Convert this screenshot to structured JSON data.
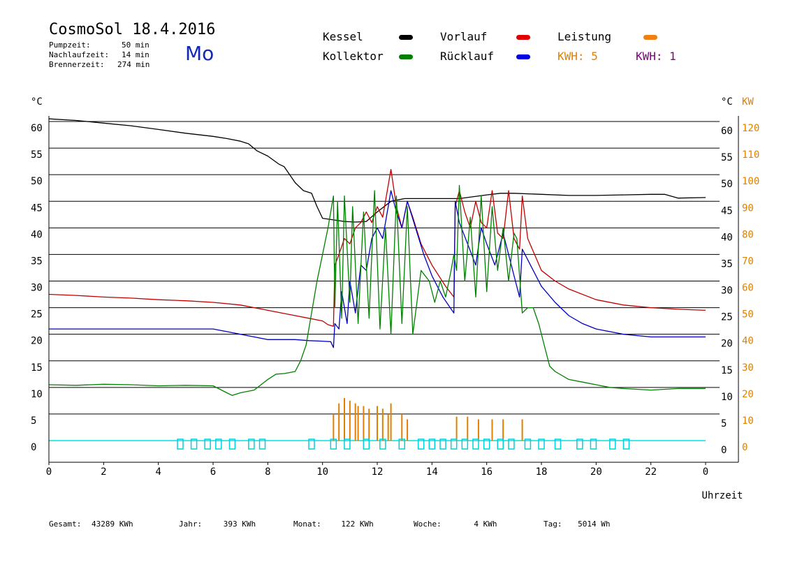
{
  "header": {
    "title": "CosmoSol 18.4.2016",
    "day": "Mo",
    "info": [
      {
        "label": "Pumpzeit:",
        "value": "50 min"
      },
      {
        "label": "Nachlaufzeit:",
        "value": "14 min"
      },
      {
        "label": "Brennerzeit:",
        "value": "274 min"
      }
    ]
  },
  "legend": {
    "kessel": {
      "label": "Kessel",
      "color": "#000000"
    },
    "kollektor": {
      "label": "Kollektor",
      "color": "#008000"
    },
    "vorlauf": {
      "label": "Vorlauf",
      "color": "#e00000"
    },
    "ruecklauf": {
      "label": "Rücklauf",
      "color": "#0000e0"
    },
    "leistung": {
      "label": "Leistung",
      "color": "#f08010"
    },
    "kwh1": {
      "label": "KWH: 5",
      "color": "#e08000"
    },
    "kwh2": {
      "label": "KWH: 1",
      "color": "#800080"
    }
  },
  "footer": [
    {
      "label": "Gesamt:",
      "value": "43289 KWh"
    },
    {
      "label": "Jahr:",
      "value": "393 KWh"
    },
    {
      "label": "Monat:",
      "value": "122 KWh"
    },
    {
      "label": "Woche:",
      "value": "4 KWh"
    },
    {
      "label": "Tag:",
      "value": "5014 Wh"
    }
  ],
  "chart_data": {
    "type": "line",
    "xlabel": "Uhrzeit",
    "ylabel_left": "°C",
    "ylabel_right_temp": "°C",
    "ylabel_right_power": "KW",
    "xlim": [
      0,
      24
    ],
    "ylim": [
      0,
      60
    ],
    "y2lim": [
      0,
      120
    ],
    "x_ticks": [
      "0",
      "2",
      "4",
      "6",
      "8",
      "10",
      "12",
      "14",
      "16",
      "18",
      "20",
      "22",
      "0"
    ],
    "y_ticks": [
      0,
      5,
      10,
      15,
      20,
      25,
      30,
      35,
      40,
      45,
      50,
      55,
      60
    ],
    "y2_ticks": [
      0,
      10,
      20,
      30,
      40,
      50,
      60,
      70,
      80,
      90,
      100,
      110,
      120
    ],
    "grid": true,
    "series": [
      {
        "name": "Kessel",
        "color": "#000000",
        "x": [
          0,
          1,
          2,
          3,
          4,
          5,
          6,
          6.5,
          7,
          7.3,
          7.6,
          8,
          8.4,
          8.6,
          8.8,
          9,
          9.3,
          9.6,
          9.8,
          10,
          10.4,
          10.8,
          11.2,
          11.6,
          12,
          12.5,
          13,
          13.5,
          14,
          15,
          16,
          16.5,
          17,
          18,
          19,
          20,
          21,
          22,
          22.5,
          23,
          24
        ],
        "y": [
          60.5,
          60.2,
          59.7,
          59.2,
          58.5,
          57.8,
          57.2,
          56.8,
          56.3,
          55.8,
          54.5,
          53.5,
          52,
          51.5,
          50,
          48.5,
          47,
          46.5,
          44,
          41.8,
          41.5,
          41.2,
          41.1,
          41.2,
          43,
          45,
          45.5,
          45.5,
          45.5,
          45.5,
          46.2,
          46.5,
          46.5,
          46.3,
          46.1,
          46.1,
          46.2,
          46.3,
          46.3,
          45.6,
          45.7
        ]
      },
      {
        "name": "Vorlauf",
        "color": "#c00000",
        "x": [
          0,
          1,
          2,
          3,
          4,
          5,
          6,
          7,
          8,
          9,
          9.5,
          10,
          10.2,
          10.4,
          10.45,
          10.6,
          10.8,
          11,
          11.2,
          11.4,
          11.6,
          11.8,
          12,
          12.2,
          12.4,
          12.5,
          12.7,
          12.9,
          13.1,
          13.3,
          13.6,
          14,
          14.5,
          14.8,
          14.85,
          15,
          15.2,
          15.4,
          15.6,
          15.8,
          16,
          16.2,
          16.4,
          16.6,
          16.8,
          17,
          17.2,
          17.3,
          17.5,
          18,
          18.5,
          19,
          20,
          21,
          22,
          23,
          24
        ],
        "y": [
          27.5,
          27.3,
          27,
          26.8,
          26.5,
          26.3,
          26,
          25.5,
          24.5,
          23.5,
          23,
          22.5,
          21.8,
          21.5,
          33,
          35,
          38,
          37,
          40,
          41,
          43,
          41,
          44,
          42,
          48,
          51,
          44,
          40,
          45,
          42,
          37,
          33,
          29,
          27,
          44,
          47,
          43,
          40,
          45,
          41,
          40,
          47,
          39,
          38,
          47,
          38,
          36,
          46,
          38,
          32,
          30,
          28.5,
          26.5,
          25.5,
          25,
          24.7,
          24.5
        ]
      },
      {
        "name": "Rücklauf",
        "color": "#0000c0",
        "x": [
          0,
          1,
          2,
          3,
          4,
          5,
          6,
          6.5,
          7,
          7.5,
          8,
          8.5,
          9,
          9.5,
          10,
          10.3,
          10.4,
          10.45,
          10.6,
          10.7,
          10.9,
          11,
          11.2,
          11.4,
          11.6,
          11.8,
          12,
          12.2,
          12.4,
          12.5,
          12.7,
          12.9,
          13.1,
          13.4,
          13.7,
          14,
          14.4,
          14.8,
          14.85,
          15,
          15.3,
          15.6,
          15.8,
          16,
          16.3,
          16.6,
          16.8,
          17,
          17.2,
          17.3,
          17.6,
          18,
          18.5,
          19,
          19.5,
          20,
          21,
          22,
          23,
          24
        ],
        "y": [
          21,
          21,
          21,
          21,
          21,
          21,
          21,
          20.5,
          20,
          19.5,
          19,
          19,
          19,
          18.8,
          18.7,
          18.6,
          17.5,
          22,
          21,
          28,
          22,
          30,
          24,
          33,
          32,
          38,
          40,
          38,
          44,
          47,
          43,
          40,
          45,
          40,
          35,
          31,
          27,
          24,
          45,
          41,
          37,
          33,
          40,
          37,
          33,
          39,
          35,
          31,
          27,
          36,
          33,
          29,
          26,
          23.5,
          22,
          21,
          20,
          19.5,
          19.5,
          19.5
        ]
      },
      {
        "name": "Kollektor",
        "color": "#008000",
        "x": [
          0,
          1,
          2,
          3,
          4,
          5,
          6,
          6.5,
          6.7,
          7,
          7.5,
          8,
          8.3,
          8.6,
          9,
          9.2,
          9.4,
          9.6,
          9.8,
          10,
          10.2,
          10.4,
          10.45,
          10.55,
          10.7,
          10.8,
          11,
          11.1,
          11.3,
          11.5,
          11.7,
          11.9,
          12.1,
          12.3,
          12.5,
          12.7,
          12.9,
          13.1,
          13.3,
          13.6,
          13.9,
          14.1,
          14.3,
          14.5,
          14.7,
          14.8,
          14.9,
          15,
          15.2,
          15.4,
          15.6,
          15.8,
          16,
          16.2,
          16.4,
          16.6,
          16.8,
          17,
          17.1,
          17.3,
          17.5,
          17.7,
          17.9,
          18.1,
          18.3,
          18.5,
          19,
          19.5,
          20,
          20.5,
          21,
          22,
          23,
          24
        ],
        "y": [
          10.5,
          10.4,
          10.6,
          10.5,
          10.3,
          10.4,
          10.3,
          9,
          8.5,
          9,
          9.5,
          11.5,
          12.5,
          12.6,
          13,
          15,
          18,
          24,
          30,
          35,
          40,
          46,
          25,
          45,
          23,
          46,
          26,
          44,
          22,
          43,
          23,
          47,
          21,
          40,
          20,
          46,
          22,
          44,
          20,
          32,
          30,
          26,
          30,
          27,
          32,
          35,
          32,
          48,
          30,
          42,
          27,
          46,
          28,
          44,
          32,
          40,
          30,
          39,
          38,
          24,
          25,
          25,
          22,
          18,
          14,
          13,
          11.5,
          11,
          10.5,
          10,
          9.8,
          9.5,
          9.8,
          9.8
        ]
      }
    ],
    "power_bars": {
      "name": "Leistung",
      "color": "#e08000",
      "x": [
        10.4,
        10.6,
        10.8,
        11,
        11.2,
        11.3,
        11.5,
        11.7,
        12,
        12.2,
        12.4,
        12.5,
        12.9,
        13.1,
        14.9,
        15.3,
        15.7,
        16.2,
        16.6,
        17.3
      ],
      "kw": [
        10,
        14,
        16,
        15,
        14,
        13,
        13,
        12,
        13,
        12,
        10,
        14,
        10,
        8,
        9,
        9,
        8,
        8,
        8,
        8
      ]
    },
    "pump_marks": [
      4.8,
      5.3,
      5.8,
      6.2,
      6.7,
      7.4,
      7.8,
      9.6,
      10.4,
      10.9,
      11.6,
      12.2,
      12.9,
      13.6,
      14.0,
      14.4,
      14.8,
      15.2,
      15.6,
      16.0,
      16.5,
      16.9,
      17.5,
      18.0,
      18.6,
      19.4,
      19.9,
      20.6,
      21.1
    ]
  }
}
